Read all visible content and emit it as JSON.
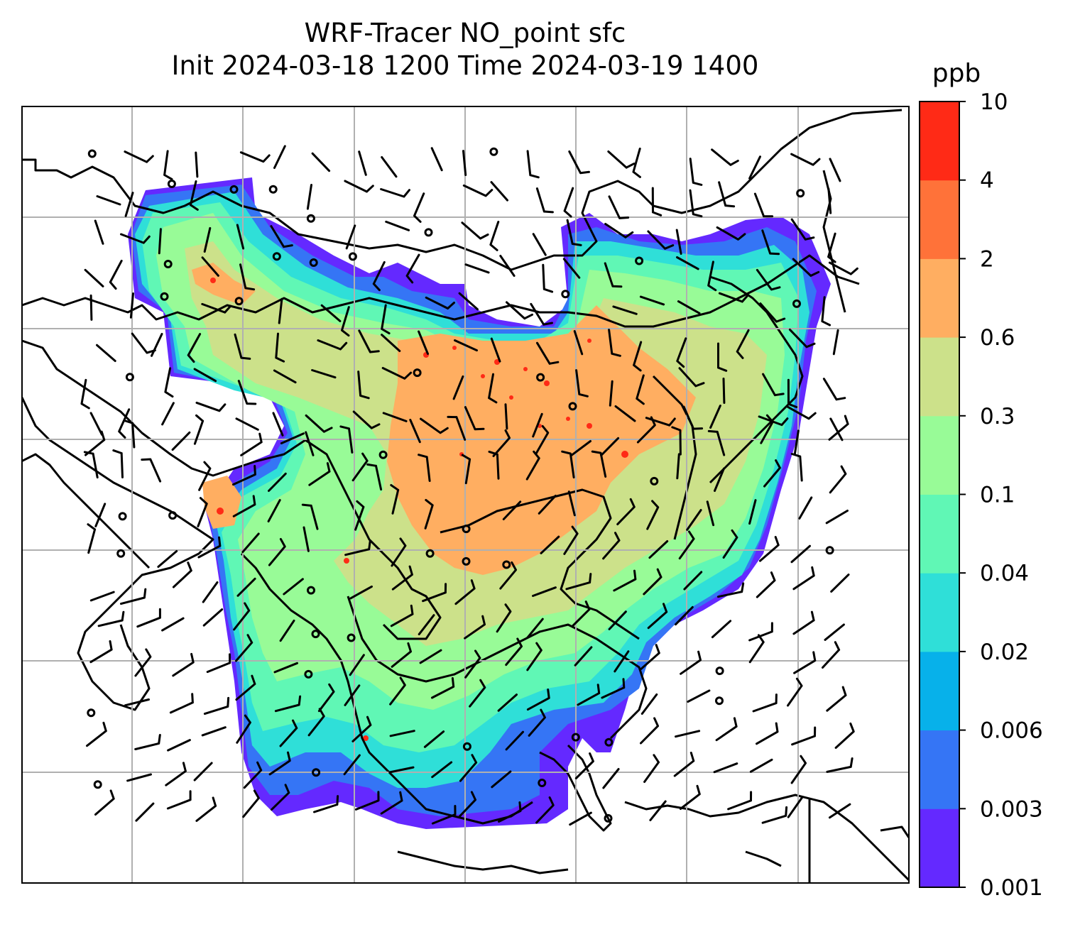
{
  "title": {
    "line1": "WRF-Tracer NO_point sfc",
    "line2": "Init 2024-03-18 1200 Time 2024-03-19 1400"
  },
  "colorbar": {
    "unit": "ppb",
    "levels": [
      "0.001",
      "0.003",
      "0.006",
      "0.02",
      "0.04",
      "0.1",
      "0.3",
      "0.6",
      "2",
      "4",
      "10"
    ],
    "colors": [
      "#6429ff",
      "#3575f5",
      "#07b1ea",
      "#2fdfd8",
      "#60f7b5",
      "#98fb97",
      "#cce18a",
      "#ffae61",
      "#ff7239",
      "#ff2a16"
    ]
  },
  "map": {
    "grid": "on",
    "coastline_color": "#000000",
    "grid_color": "#b0b0b0",
    "wind_barbs": "on"
  }
}
